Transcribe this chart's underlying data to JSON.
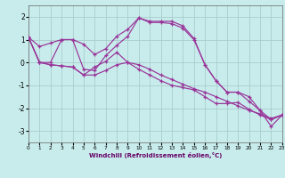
{
  "xlabel": "Windchill (Refroidissement éolien,°C)",
  "background_color": "#c8ecec",
  "grid_color": "#aacccc",
  "line_color": "#993399",
  "xlim": [
    0,
    23
  ],
  "ylim": [
    -3.5,
    2.5
  ],
  "yticks": [
    -3,
    -2,
    -1,
    0,
    1,
    2
  ],
  "xticks": [
    0,
    1,
    2,
    3,
    4,
    5,
    6,
    7,
    8,
    9,
    10,
    11,
    12,
    13,
    14,
    15,
    16,
    17,
    18,
    19,
    20,
    21,
    22,
    23
  ],
  "series": [
    [
      1.1,
      0.7,
      0.85,
      1.0,
      1.0,
      0.8,
      0.35,
      0.6,
      1.15,
      1.45,
      1.95,
      1.8,
      1.8,
      1.8,
      1.6,
      1.05,
      -0.1,
      -0.8,
      -1.3,
      -1.3,
      -1.5,
      -2.1,
      -2.5,
      -2.3
    ],
    [
      1.1,
      0.0,
      0.0,
      1.0,
      1.0,
      -0.3,
      -0.35,
      0.3,
      0.75,
      1.15,
      1.95,
      1.75,
      1.75,
      1.7,
      1.5,
      1.0,
      -0.1,
      -0.8,
      -1.3,
      -1.3,
      -1.7,
      -2.1,
      -2.8,
      -2.3
    ],
    [
      1.1,
      0.0,
      -0.1,
      -0.15,
      -0.2,
      -0.55,
      -0.2,
      0.05,
      0.45,
      0.0,
      -0.1,
      -0.3,
      -0.55,
      -0.75,
      -0.95,
      -1.15,
      -1.3,
      -1.5,
      -1.7,
      -1.9,
      -2.1,
      -2.25,
      -2.45,
      -2.3
    ],
    [
      1.1,
      0.0,
      -0.1,
      -0.15,
      -0.2,
      -0.55,
      -0.55,
      -0.35,
      -0.1,
      0.0,
      -0.3,
      -0.55,
      -0.8,
      -1.0,
      -1.1,
      -1.2,
      -1.5,
      -1.8,
      -1.8,
      -1.75,
      -2.05,
      -2.3,
      -2.5,
      -2.3
    ]
  ]
}
